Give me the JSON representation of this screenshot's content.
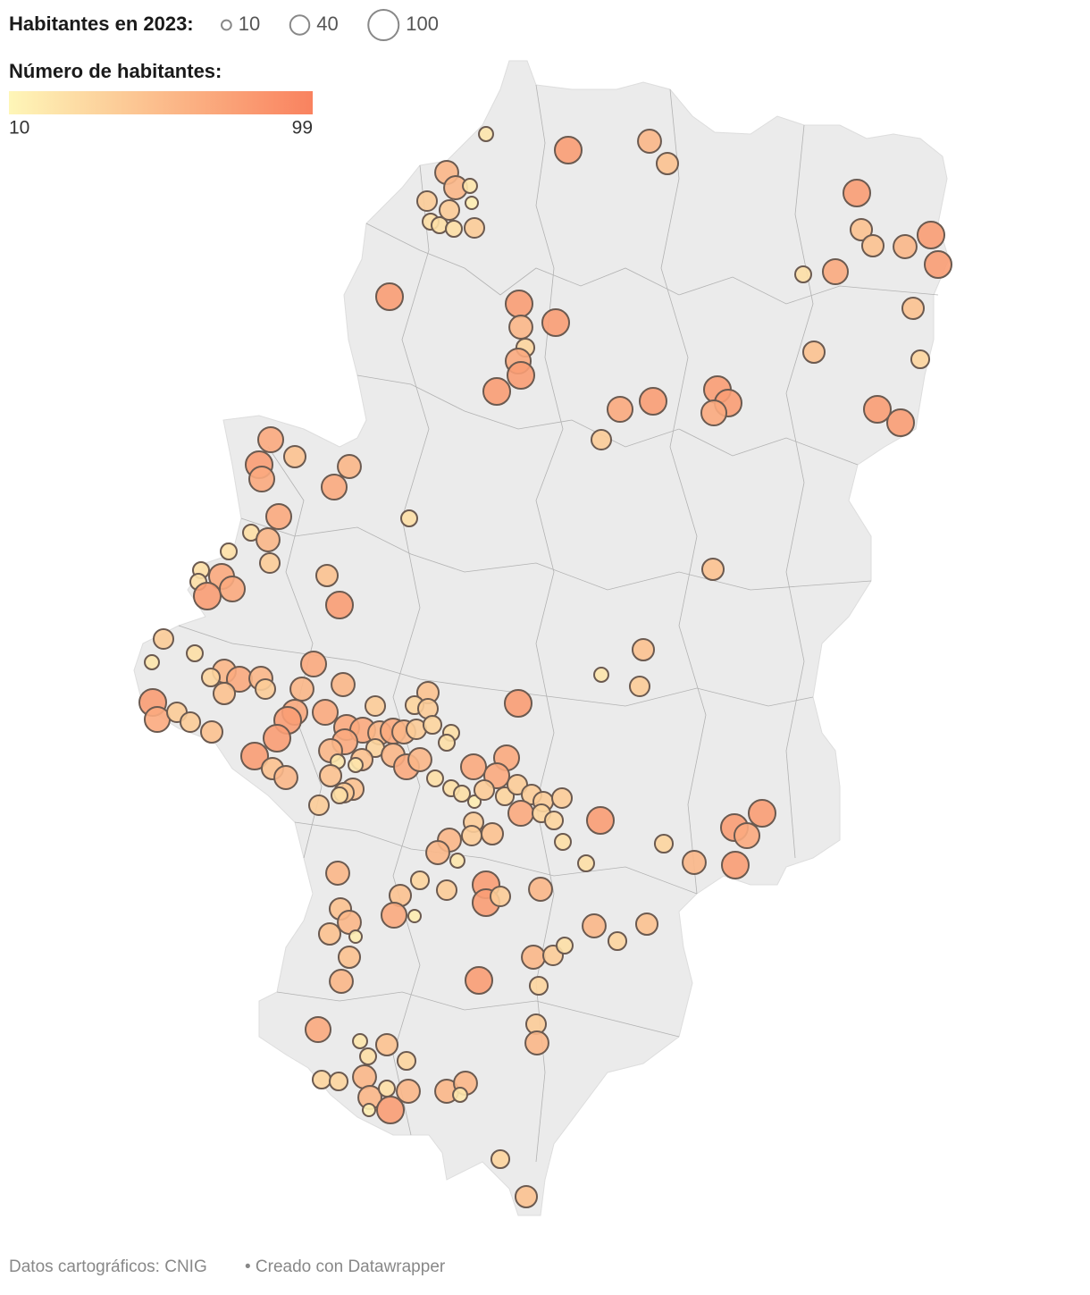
{
  "legend": {
    "size_title": "Habitantes en 2023:",
    "sizes": [
      10,
      40,
      100
    ],
    "color_title": "Número de habitantes:",
    "color_min": 10,
    "color_max": 99,
    "colors": [
      "#fef6b8",
      "#f9825f"
    ]
  },
  "bubbles": {
    "values": [
      22,
      78,
      58,
      50,
      58,
      58,
      22,
      42,
      42,
      17,
      28,
      28,
      28,
      42,
      78,
      50,
      50,
      58,
      78,
      78,
      28,
      68,
      50,
      50,
      35,
      78,
      78,
      58,
      78,
      35,
      68,
      78,
      78,
      68,
      78,
      78,
      78,
      68,
      78,
      78,
      42,
      68,
      50,
      78,
      68,
      58,
      68,
      28,
      68,
      28,
      58,
      28,
      28,
      68,
      28,
      78,
      68,
      42,
      50,
      78,
      50,
      50,
      22,
      42,
      42,
      28,
      22,
      68,
      58,
      35,
      68,
      58,
      42,
      50,
      58,
      58,
      50,
      78,
      78,
      68,
      42,
      42,
      50,
      68,
      78,
      68,
      42,
      35,
      42,
      78,
      78,
      68,
      68,
      68,
      58,
      68,
      58,
      42,
      35,
      28,
      28,
      35,
      58,
      50,
      58,
      68,
      58,
      22,
      22,
      50,
      58,
      50,
      50,
      42,
      28,
      42,
      28,
      28,
      28,
      17,
      68,
      68,
      68,
      42,
      35,
      42,
      42,
      42,
      42,
      68,
      35,
      35,
      78,
      28,
      42,
      42,
      50,
      58,
      58,
      22,
      28,
      35,
      58,
      78,
      68,
      78,
      78,
      58,
      50,
      35,
      42,
      78,
      78,
      42,
      58,
      50,
      58,
      68,
      17,
      50,
      17,
      58,
      50,
      35,
      58,
      42,
      28,
      50,
      58,
      78,
      35,
      42,
      58,
      68,
      22,
      50,
      28,
      35,
      35,
      35,
      58,
      58,
      28,
      58,
      78,
      17,
      58,
      58,
      22,
      35,
      50
    ]
  },
  "footer": {
    "source": "Datos cartográficos: CNIG",
    "credit": "• Creado con Datawrapper"
  }
}
